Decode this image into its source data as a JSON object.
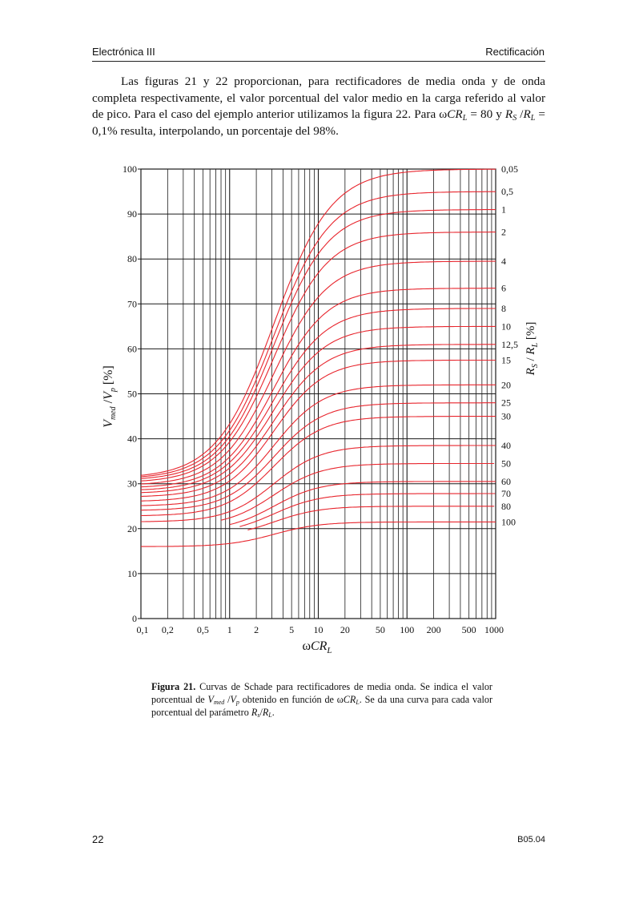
{
  "header": {
    "left": "Electrónica III",
    "right": "Rectificación"
  },
  "intro": {
    "part1": "Las figuras 21 y 22 proporcionan, para rectificadores de media onda y de onda completa respectivamente, el valor porcentual del valor medio en la carga referido al valor de pico. Para el caso del ejemplo anterior utilizamos la figura 22. Para ω",
    "cr": "CR",
    "l": "L",
    "part2": " = 80 y ",
    "rs_r": "R",
    "rs_s": "S",
    "slash": " /",
    "rl_r": "R",
    "rl_l": "L",
    "part3": " = 0,1% resulta, interpolando, un porcentaje del 98%."
  },
  "chart_data": {
    "type": "line",
    "title": "",
    "xscale": "log",
    "xlim": [
      0.1,
      1000
    ],
    "ylim": [
      0,
      100
    ],
    "xlabel": "ωCR_L",
    "ylabel": "V_med / V_p  [%]",
    "right_label": "R_S / R_L  [%]",
    "x_tick_labels": [
      "0,1",
      "0,2",
      "0,5",
      "1",
      "2",
      "5",
      "10",
      "20",
      "50",
      "100",
      "200",
      "500",
      "1000"
    ],
    "x_ticks": [
      0.1,
      0.2,
      0.5,
      1,
      2,
      5,
      10,
      20,
      50,
      100,
      200,
      500,
      1000
    ],
    "y_ticks": [
      0,
      10,
      20,
      30,
      40,
      50,
      60,
      70,
      80,
      90,
      100
    ],
    "grid": true,
    "series": [
      {
        "name": "0,05",
        "y0": 31.2,
        "yinf": 100.0,
        "k": 0.72,
        "xstart": 0.1
      },
      {
        "name": "0,5",
        "y0": 31.0,
        "yinf": 95.0,
        "k": 0.7,
        "xstart": 0.1
      },
      {
        "name": "1",
        "y0": 30.7,
        "yinf": 91.0,
        "k": 0.68,
        "xstart": 0.1
      },
      {
        "name": "2",
        "y0": 30.2,
        "yinf": 86.0,
        "k": 0.68,
        "xstart": 0.1
      },
      {
        "name": "4",
        "y0": 29.6,
        "yinf": 79.5,
        "k": 0.67,
        "xstart": 0.1
      },
      {
        "name": "6",
        "y0": 29.0,
        "yinf": 73.5,
        "k": 0.66,
        "xstart": 0.1
      },
      {
        "name": "8",
        "y0": 28.4,
        "yinf": 69.0,
        "k": 0.66,
        "xstart": 0.1
      },
      {
        "name": "10",
        "y0": 27.8,
        "yinf": 65.0,
        "k": 0.65,
        "xstart": 0.1
      },
      {
        "name": "12,5",
        "y0": 27.0,
        "yinf": 61.0,
        "k": 0.64,
        "xstart": 0.1
      },
      {
        "name": "15",
        "y0": 26.0,
        "yinf": 57.5,
        "k": 0.63,
        "xstart": 0.1
      },
      {
        "name": "20",
        "y0": 25.0,
        "yinf": 52.0,
        "k": 0.62,
        "xstart": 0.1
      },
      {
        "name": "25",
        "y0": 24.0,
        "yinf": 48.0,
        "k": 0.62,
        "xstart": 0.1
      },
      {
        "name": "30",
        "y0": 22.8,
        "yinf": 45.0,
        "k": 0.62,
        "xstart": 0.1
      },
      {
        "name": "40",
        "y0": 21.5,
        "yinf": 38.5,
        "k": 0.6,
        "xstart": 0.1
      },
      {
        "name": "50",
        "y0": 20.5,
        "yinf": 34.5,
        "k": 0.6,
        "xstart": 0.8
      },
      {
        "name": "60",
        "y0": 19.5,
        "yinf": 30.5,
        "k": 0.58,
        "xstart": 1.0
      },
      {
        "name": "70",
        "y0": 18.8,
        "yinf": 27.8,
        "k": 0.58,
        "xstart": 1.3
      },
      {
        "name": "80",
        "y0": 18.0,
        "yinf": 25.0,
        "k": 0.58,
        "xstart": 1.6
      },
      {
        "name": "100",
        "y0": 16.0,
        "yinf": 21.5,
        "k": 0.58,
        "xstart": 0.1
      }
    ]
  },
  "caption": {
    "bold": "Figura 21.",
    "t1": " Curvas de Schade para rectificadores de media onda. Se indica el valor porcentual de ",
    "v1": "V",
    "v1sub": "med",
    "sl": " /",
    "v2": "V",
    "v2sub": "p",
    "t2": " obtenido en función de ω",
    "cr": "CR",
    "crsub": "L",
    "t3": ". Se da una curva para cada valor porcentual del parámetro ",
    "r1": "R",
    "r1sub": "s",
    "sl2": "/",
    "r2": "R",
    "r2sub": "L",
    "t4": "."
  },
  "footer": {
    "page": "22",
    "code": "B05.04"
  },
  "colors": {
    "curve": "#e8262e",
    "grid": "#1a1a1a",
    "text": "#111111"
  }
}
